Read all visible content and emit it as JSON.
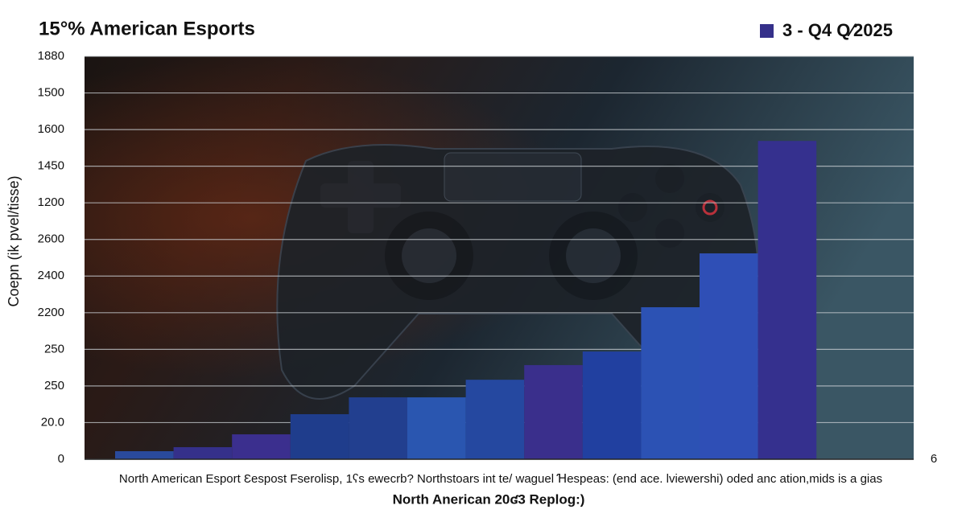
{
  "chart_data": {
    "type": "bar",
    "title": "15°% American Esports",
    "x_caption": "North American  Esport Ɛespost Fserolisp, 1ʕs ewecrb? Northstoars int te/ waguel Ɦespeas: (end ace. Ɩviewershi) oded anc ation,mids is a gias",
    "x_label": "North Anerican 20ʛ3 Replog:)",
    "y_label": "Coepn (ik pvel/tisse)",
    "right_note": "6",
    "categories": [
      null,
      null,
      null,
      null,
      null,
      null,
      null,
      null,
      null,
      null,
      null,
      null
    ],
    "series": [
      {
        "name": "3  - Q4 Q⁄2025",
        "color": "#35308a",
        "colors": [
          "#2a4a9c",
          "#35308a",
          "#3b2f8e",
          "#1f3d8c",
          "#223f8f",
          "#2a56b0",
          "#2548a0",
          "#3a2f8c",
          "#2140a0",
          "#2c52b4",
          "#2f4fb6",
          "#35308e"
        ],
        "values": [
          0.22,
          0.33,
          0.68,
          1.23,
          1.69,
          1.69,
          2.17,
          2.57,
          2.94,
          4.15,
          5.62,
          8.69
        ]
      }
    ],
    "ylim": [
      0,
      11
    ],
    "yticks": [
      {
        "value": 0,
        "label": "0"
      },
      {
        "value": 1,
        "label": "20.0"
      },
      {
        "value": 2,
        "label": "250"
      },
      {
        "value": 3,
        "label": "250"
      },
      {
        "value": 4,
        "label": "2200"
      },
      {
        "value": 5,
        "label": "2400"
      },
      {
        "value": 6,
        "label": "2600"
      },
      {
        "value": 7,
        "label": "1200"
      },
      {
        "value": 8,
        "label": "1450"
      },
      {
        "value": 9,
        "label": "1600"
      },
      {
        "value": 10,
        "label": "1500"
      },
      {
        "value": 11,
        "label": "1880"
      }
    ],
    "grid": true
  }
}
